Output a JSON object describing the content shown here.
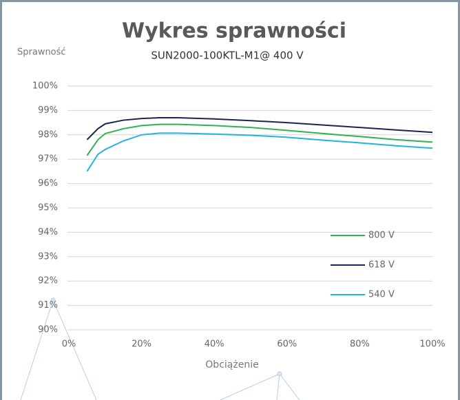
{
  "chart_data": {
    "type": "line",
    "title": "Wykres sprawności",
    "subtitle": "SUN2000-100KTL-M1@ 400 V",
    "y_label": "Sprawność",
    "x_label": "Obciążenie",
    "x": [
      5,
      8,
      10,
      15,
      20,
      25,
      30,
      40,
      50,
      60,
      70,
      80,
      90,
      100
    ],
    "series": [
      {
        "name": "800 V",
        "color": "#2eb34f",
        "values": [
          97.15,
          97.8,
          98.05,
          98.25,
          98.38,
          98.43,
          98.43,
          98.38,
          98.3,
          98.18,
          98.05,
          97.93,
          97.8,
          97.7
        ]
      },
      {
        "name": "618 V",
        "color": "#1b2450",
        "values": [
          97.8,
          98.25,
          98.45,
          98.6,
          98.67,
          98.7,
          98.7,
          98.65,
          98.58,
          98.5,
          98.4,
          98.3,
          98.2,
          98.1
        ]
      },
      {
        "name": "540 V",
        "color": "#22b4dc",
        "values": [
          96.5,
          97.2,
          97.4,
          97.75,
          98.0,
          98.07,
          98.07,
          98.03,
          97.98,
          97.9,
          97.78,
          97.67,
          97.55,
          97.45
        ]
      }
    ],
    "xlim": [
      0,
      100
    ],
    "xticks": [
      {
        "value": 0,
        "label": "0%"
      },
      {
        "value": 20,
        "label": "20%"
      },
      {
        "value": 40,
        "label": "40%"
      },
      {
        "value": 60,
        "label": "60%"
      },
      {
        "value": 80,
        "label": "80%"
      },
      {
        "value": 100,
        "label": "100%"
      }
    ],
    "ylim": [
      90,
      100
    ],
    "yticks": [
      {
        "value": 90,
        "label": "90%"
      },
      {
        "value": 91,
        "label": "91%"
      },
      {
        "value": 92,
        "label": "92%"
      },
      {
        "value": 93,
        "label": "93%"
      },
      {
        "value": 94,
        "label": "94%"
      },
      {
        "value": 95,
        "label": "95%"
      },
      {
        "value": 96,
        "label": "96%"
      },
      {
        "value": 97,
        "label": "97%"
      },
      {
        "value": 98,
        "label": "98%"
      },
      {
        "value": 99,
        "label": "99%"
      },
      {
        "value": 100,
        "label": "100%"
      }
    ],
    "grid": true,
    "legend": "right"
  }
}
